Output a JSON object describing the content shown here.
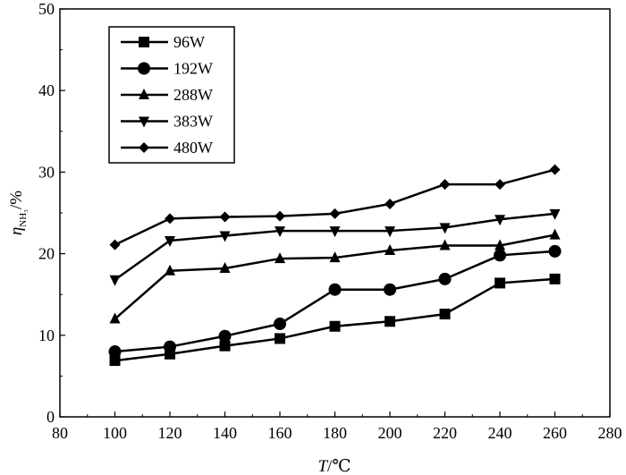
{
  "chart_data": {
    "type": "line",
    "xlabel": "T/℃",
    "xlabel_italic": "T",
    "xlabel_unit": "/℃",
    "ylabel": "ηNH3/%",
    "ylabel_main": "η",
    "ylabel_sub": "NH₃",
    "ylabel_unit": "/%",
    "xlim": [
      80,
      280
    ],
    "ylim": [
      0,
      50
    ],
    "xticks": [
      "80",
      "100",
      "120",
      "140",
      "160",
      "180",
      "200",
      "220",
      "240",
      "260",
      "280"
    ],
    "yticks": [
      "0",
      "10",
      "20",
      "30",
      "40",
      "50"
    ],
    "x": [
      100,
      120,
      140,
      160,
      180,
      200,
      220,
      240,
      260
    ],
    "legend_position": "top-left",
    "grid": false,
    "series": [
      {
        "name": "96W",
        "marker": "square",
        "values": [
          6.9,
          7.7,
          8.7,
          9.6,
          11.1,
          11.7,
          12.6,
          16.4,
          16.9
        ]
      },
      {
        "name": "192W",
        "marker": "circle",
        "values": [
          8.0,
          8.6,
          9.9,
          11.4,
          15.6,
          15.6,
          16.9,
          19.8,
          20.3
        ]
      },
      {
        "name": "288W",
        "marker": "triangle-up",
        "values": [
          12.0,
          17.9,
          18.2,
          19.4,
          19.5,
          20.4,
          21.0,
          21.0,
          22.3
        ]
      },
      {
        "name": "383W",
        "marker": "triangle-down",
        "values": [
          16.8,
          21.6,
          22.2,
          22.8,
          22.8,
          22.8,
          23.2,
          24.2,
          24.9
        ]
      },
      {
        "name": "480W",
        "marker": "diamond",
        "values": [
          21.1,
          24.3,
          24.5,
          24.6,
          24.9,
          26.1,
          28.5,
          28.5,
          30.3
        ]
      }
    ]
  }
}
